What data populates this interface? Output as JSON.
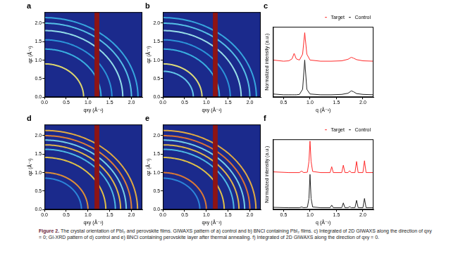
{
  "chart_data": [
    {
      "label": "a",
      "type": "giwaxs",
      "x_label": "qxy (Å⁻¹)",
      "y_label": "qz (Å⁻¹)",
      "xlim": [
        0,
        2.25
      ],
      "ylim": [
        0,
        2.3
      ],
      "xticks": [
        {
          "value": 0,
          "label": "0.0"
        },
        0.5,
        {
          "value": 1,
          "label": "1.0"
        },
        1.5,
        {
          "value": 2,
          "label": "2.0"
        }
      ],
      "yticks": [
        {
          "value": 0,
          "label": "0.0"
        },
        0.5,
        {
          "value": 1,
          "label": "1.0"
        },
        1.5,
        {
          "value": 2,
          "label": "2.0"
        }
      ],
      "color": "#1b2a8c",
      "grid": false,
      "gap": {
        "qxy": [
          1.15,
          1.26
        ],
        "color": "#8e1414"
      },
      "rings": [
        {
          "q": 0.9,
          "color": "#f2e96a"
        },
        {
          "q": 1.3,
          "color": "#3dbde8"
        },
        {
          "q": 1.55,
          "color": "#2f9fe0"
        },
        {
          "q": 1.8,
          "color": "#9ff0f2"
        },
        {
          "q": 2.0,
          "color": "#5ccff0"
        },
        {
          "q": 2.15,
          "color": "#3ab3e6"
        }
      ]
    },
    {
      "label": "b",
      "type": "giwaxs",
      "x_label": "qxy (Å⁻¹)",
      "y_label": "qz (Å⁻¹)",
      "xlim": [
        0,
        2.25
      ],
      "ylim": [
        0,
        2.3
      ],
      "xticks": [
        {
          "value": 0,
          "label": "0.0"
        },
        0.5,
        {
          "value": 1,
          "label": "1.0"
        },
        1.5,
        {
          "value": 2,
          "label": "2.0"
        }
      ],
      "yticks": [
        {
          "value": 0,
          "label": "0.0"
        },
        0.5,
        {
          "value": 1,
          "label": "1.0"
        },
        1.5,
        {
          "value": 2,
          "label": "2.0"
        }
      ],
      "color": "#1b2a8c",
      "grid": false,
      "gap": {
        "qxy": [
          1.15,
          1.26
        ],
        "color": "#8e1414"
      },
      "rings": [
        {
          "q": 0.7,
          "color": "#6cd6f2"
        },
        {
          "q": 0.9,
          "color": "#f2ee78"
        },
        {
          "q": 1.3,
          "color": "#3dbde8"
        },
        {
          "q": 1.55,
          "color": "#2f9fe0"
        },
        {
          "q": 1.8,
          "color": "#a6f2f2"
        },
        {
          "q": 2.0,
          "color": "#5ccff0"
        },
        {
          "q": 2.15,
          "color": "#3ab3e6"
        }
      ]
    },
    {
      "label": "c",
      "type": "line",
      "x_label": "q (Å⁻¹)",
      "y_label": "Normalized intensity (a.u.)",
      "xlim": [
        0.3,
        2.2
      ],
      "ylim": [
        0,
        1.8
      ],
      "xticks": [
        0.5,
        {
          "value": 1,
          "label": "1.0"
        },
        1.5,
        {
          "value": 2,
          "label": "2.0"
        }
      ],
      "tick_labels": "x",
      "grid": false,
      "legend": "top-right",
      "x": [
        0.3,
        0.5,
        0.6,
        0.66,
        0.7,
        0.74,
        0.8,
        0.86,
        0.9,
        0.94,
        1.0,
        1.2,
        1.4,
        1.6,
        1.72,
        1.78,
        1.82,
        1.88,
        2.0,
        2.2
      ],
      "series": [
        {
          "name": "Target",
          "color": "#ff2a2a",
          "values": [
            0.95,
            0.92,
            0.93,
            0.98,
            1.12,
            0.98,
            0.95,
            1.1,
            1.65,
            1.1,
            0.95,
            0.92,
            0.92,
            0.93,
            0.97,
            1.02,
            1.0,
            0.96,
            0.93,
            0.92
          ]
        },
        {
          "name": "Control",
          "color": "#222222",
          "values": [
            0.08,
            0.06,
            0.06,
            0.06,
            0.06,
            0.06,
            0.07,
            0.2,
            0.95,
            0.2,
            0.08,
            0.06,
            0.06,
            0.07,
            0.1,
            0.16,
            0.14,
            0.09,
            0.07,
            0.06
          ]
        }
      ]
    },
    {
      "label": "d",
      "type": "giwaxs",
      "x_label": "qxy (Å⁻¹)",
      "y_label": "qz (Å⁻¹)",
      "xlim": [
        0,
        2.25
      ],
      "ylim": [
        0,
        2.3
      ],
      "xticks": [
        {
          "value": 0,
          "label": "0.0"
        },
        0.5,
        {
          "value": 1,
          "label": "1.0"
        },
        1.5,
        {
          "value": 2,
          "label": "2.0"
        }
      ],
      "yticks": [
        {
          "value": 0,
          "label": "0.0"
        },
        0.5,
        {
          "value": 1,
          "label": "1.0"
        },
        1.5,
        {
          "value": 2,
          "label": "2.0"
        }
      ],
      "color": "#1b2a8c",
      "grid": false,
      "gap": {
        "qxy": [
          1.15,
          1.26
        ],
        "color": "#8e1414"
      },
      "rings": [
        {
          "q": 0.85,
          "color": "#2f8fe0"
        },
        {
          "q": 1.0,
          "color": "#f29a2e"
        },
        {
          "q": 1.41,
          "color": "#f5d040"
        },
        {
          "q": 1.63,
          "color": "#55c9ec"
        },
        {
          "q": 1.75,
          "color": "#f5c542"
        },
        {
          "q": 1.88,
          "color": "#7fe0f0"
        },
        {
          "q": 2.0,
          "color": "#f28a2e"
        },
        {
          "q": 2.14,
          "color": "#f5b83a"
        }
      ]
    },
    {
      "label": "e",
      "type": "giwaxs",
      "x_label": "qxy (Å⁻¹)",
      "y_label": "qz (Å⁻¹)",
      "xlim": [
        0,
        2.25
      ],
      "ylim": [
        0,
        2.3
      ],
      "xticks": [
        {
          "value": 0,
          "label": "0.0"
        },
        0.5,
        {
          "value": 1,
          "label": "1.0"
        },
        1.5,
        {
          "value": 2,
          "label": "2.0"
        }
      ],
      "yticks": [
        {
          "value": 0,
          "label": "0.0"
        },
        0.5,
        {
          "value": 1,
          "label": "1.0"
        },
        1.5,
        {
          "value": 2,
          "label": "2.0"
        }
      ],
      "color": "#1b2a8c",
      "grid": false,
      "gap": {
        "qxy": [
          1.15,
          1.26
        ],
        "color": "#8e1414"
      },
      "rings": [
        {
          "q": 0.85,
          "color": "#2f8fe0"
        },
        {
          "q": 1.0,
          "color": "#f0822a"
        },
        {
          "q": 1.41,
          "color": "#f5d040"
        },
        {
          "q": 1.63,
          "color": "#55c9ec"
        },
        {
          "q": 1.75,
          "color": "#f5c542"
        },
        {
          "q": 1.88,
          "color": "#7fe0f0"
        },
        {
          "q": 2.0,
          "color": "#f07a2a"
        },
        {
          "q": 2.14,
          "color": "#f5b83a"
        }
      ]
    },
    {
      "label": "f",
      "type": "line",
      "x_label": "q (Å⁻¹)",
      "y_label": "Normalized intensity (a.u.)",
      "xlim": [
        0.3,
        2.2
      ],
      "ylim": [
        0,
        1.9
      ],
      "xticks": [
        0.5,
        {
          "value": 1,
          "label": "1.0"
        },
        1.5,
        {
          "value": 2,
          "label": "2.0"
        }
      ],
      "tick_labels": "x",
      "grid": false,
      "legend": "top-right",
      "x": [
        0.3,
        0.6,
        0.8,
        0.84,
        0.88,
        0.95,
        0.98,
        1.0,
        1.02,
        1.05,
        1.2,
        1.38,
        1.41,
        1.44,
        1.6,
        1.63,
        1.66,
        1.72,
        1.75,
        1.78,
        1.85,
        1.88,
        1.91,
        2.0,
        2.03,
        2.06,
        2.2
      ],
      "series": [
        {
          "name": "Target",
          "color": "#ff2a2a",
          "values": [
            1.02,
            1.0,
            1.0,
            1.04,
            1.0,
            1.01,
            1.3,
            1.85,
            1.3,
            1.03,
            1.0,
            1.0,
            1.16,
            1.0,
            1.0,
            1.2,
            1.0,
            1.0,
            1.05,
            1.0,
            1.0,
            1.3,
            1.0,
            1.0,
            1.32,
            1.0,
            1.0
          ]
        },
        {
          "name": "Control",
          "color": "#222222",
          "values": [
            0.06,
            0.05,
            0.05,
            0.07,
            0.05,
            0.06,
            0.3,
            0.95,
            0.3,
            0.07,
            0.05,
            0.05,
            0.12,
            0.05,
            0.05,
            0.18,
            0.05,
            0.05,
            0.08,
            0.05,
            0.05,
            0.25,
            0.05,
            0.05,
            0.3,
            0.05,
            0.05
          ]
        }
      ]
    }
  ],
  "caption": {
    "label": "Figure 2.",
    "text": "The crystal orientation of PbI₂ and perovskite films. GIWAXS pattern of a) control and b) BNCl containing PbI₂ films. c) Integrated of 2D GIWAXS along the direction of qxy = 0; GI-XRD pattern of d) control and e) BNCl containing perovskite layer after thermal annealing. f) Integrated of 2D GIWAXS along the direction of qxy = 0."
  }
}
